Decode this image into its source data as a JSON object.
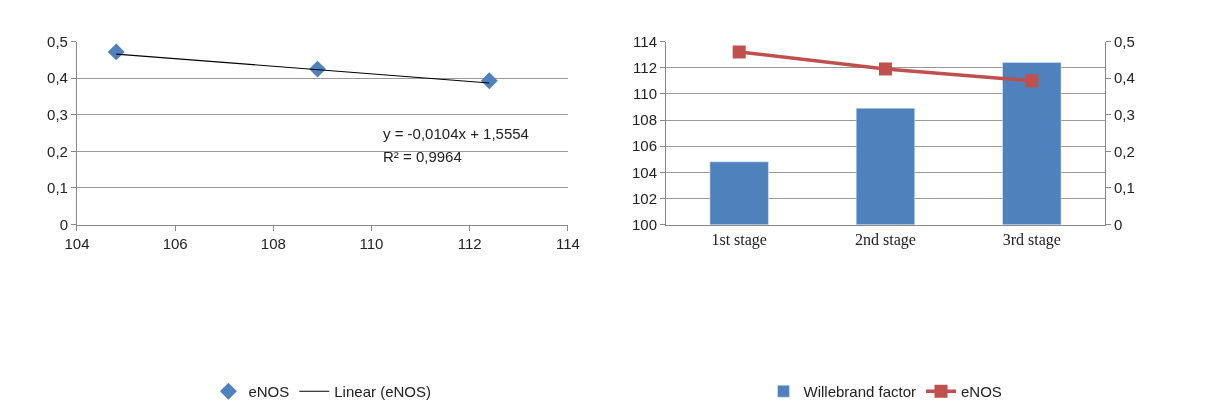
{
  "chart_data": [
    {
      "type": "scatter",
      "marker": "diamond",
      "grid": "y",
      "legend": "bottom",
      "x": [
        104.8,
        108.9,
        112.4
      ],
      "series": [
        {
          "name": "eNOS",
          "color": "#4f81bd",
          "values": [
            0.472,
            0.425,
            0.393
          ]
        },
        {
          "name": "Linear (eNOS)",
          "type": "line",
          "marker": "none",
          "color": "#000000",
          "x": [
            104.8,
            112.4
          ],
          "values": [
            0.466,
            0.387
          ]
        }
      ],
      "xlim": [
        104,
        114
      ],
      "xticks": [
        104,
        106,
        108,
        110,
        112,
        114
      ],
      "ylim": [
        0,
        0.5
      ],
      "yticks": [
        0,
        {
          "value": 0.1,
          "label": "0,1"
        },
        {
          "value": 0.2,
          "label": "0,2"
        },
        {
          "value": 0.3,
          "label": "0,3"
        },
        {
          "value": 0.4,
          "label": "0,4"
        },
        {
          "value": 0.5,
          "label": "0,5"
        }
      ],
      "annotations": [
        "y = -0,0104x + 1,5554",
        "R² = 0,9964"
      ]
    },
    {
      "type": "bar",
      "grid": "y",
      "legend": "bottom",
      "categories": [
        "1st stage",
        "2nd stage",
        "3rd stage"
      ],
      "series": [
        {
          "name": "Willebrand factor",
          "color": "#4f81bd",
          "values": [
            104.8,
            108.9,
            112.4
          ]
        },
        {
          "name": "eNOS",
          "type": "line",
          "axis": "y2",
          "marker": "square",
          "color": "#c0504d",
          "values": [
            0.472,
            0.425,
            0.393
          ]
        }
      ],
      "ylim": [
        100,
        114
      ],
      "yticks": [
        100,
        102,
        104,
        106,
        108,
        110,
        112,
        114
      ],
      "y2lim": [
        0,
        0.5
      ],
      "y2ticks": [
        0,
        {
          "value": 0.1,
          "label": "0,1"
        },
        {
          "value": 0.2,
          "label": "0,2"
        },
        {
          "value": 0.3,
          "label": "0,3"
        },
        {
          "value": 0.4,
          "label": "0,4"
        },
        {
          "value": 0.5,
          "label": "0,5"
        }
      ]
    }
  ]
}
